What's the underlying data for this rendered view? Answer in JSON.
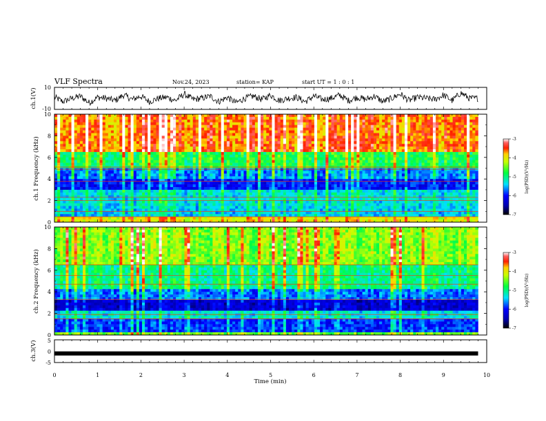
{
  "header": {
    "title": "VLF Spectra",
    "date": "Nov.24, 2023",
    "station": "station= KAP",
    "start": "start  UT =  1 : 0  : 1"
  },
  "chart_data": [
    {
      "type": "line",
      "panel": "ch1-waveform",
      "ylabel": "ch.1(V)",
      "ylim": [
        -10,
        10
      ],
      "yticks": [
        10,
        -10
      ],
      "series": [
        {
          "values_sampled_every_0.2min": [
            1,
            -3,
            0,
            2,
            -4,
            1,
            0,
            -2,
            3,
            -1,
            2,
            -3,
            0,
            1,
            -2,
            4,
            -1,
            0,
            2,
            -3,
            1,
            -4,
            0,
            2,
            -1,
            3,
            -2,
            0,
            1,
            -3,
            2,
            -1,
            0,
            3,
            -2,
            1,
            -1,
            2,
            -3,
            0,
            4,
            -2,
            1,
            0,
            -1,
            3,
            -2,
            5,
            0
          ]
        }
      ]
    },
    {
      "type": "heatmap",
      "panel": "ch1-spectrogram",
      "ylabel": "ch.1 Frequency (kHz)",
      "ylim": [
        0,
        10
      ],
      "yticks": [
        "0",
        "2",
        "4",
        "6",
        "8",
        "10"
      ],
      "colorbar": {
        "label": "log(PSD)(V²/Hz)",
        "range": [
          -7,
          -3
        ],
        "ticks": [
          "-3",
          "-4",
          "-5",
          "-6",
          "-7"
        ]
      },
      "bands": [
        {
          "from": 0,
          "to": 0.5,
          "level": -4.0
        },
        {
          "from": 0.5,
          "to": 1.5,
          "level": -5.4
        },
        {
          "from": 1.5,
          "to": 3,
          "level": -5.3
        },
        {
          "from": 3,
          "to": 4,
          "level": -6.0
        },
        {
          "from": 4,
          "to": 5,
          "level": -5.6
        },
        {
          "from": 5,
          "to": 6.5,
          "level": -4.8
        },
        {
          "from": 6.5,
          "to": 10,
          "level": -3.6
        }
      ],
      "lines_khz": [
        0.5,
        1.0,
        2.0,
        2.3,
        3.8,
        4.9,
        5.1
      ]
    },
    {
      "type": "heatmap",
      "panel": "ch2-spectrogram",
      "ylabel": "ch.2 Frequency (kHz)",
      "ylim": [
        0,
        10
      ],
      "yticks": [
        "0",
        "2",
        "4",
        "6",
        "8",
        "10"
      ],
      "colorbar": {
        "label": "log(PSD)(V²/Hz)",
        "range": [
          -7,
          -3
        ],
        "ticks": [
          "-3",
          "-4",
          "-5",
          "-6",
          "-7"
        ]
      },
      "bands": [
        {
          "from": 0,
          "to": 0.3,
          "level": -4.5
        },
        {
          "from": 0.3,
          "to": 1.6,
          "level": -5.9
        },
        {
          "from": 1.6,
          "to": 2.2,
          "level": -5.3
        },
        {
          "from": 2.2,
          "to": 3.3,
          "level": -6.3
        },
        {
          "from": 3.3,
          "to": 4.2,
          "level": -5.7
        },
        {
          "from": 4.2,
          "to": 6.5,
          "level": -5.0
        },
        {
          "from": 6.5,
          "to": 10,
          "level": -4.4
        }
      ],
      "lines_khz": [
        1.5,
        1.9,
        3.3,
        4.7,
        5.5,
        6.5
      ]
    },
    {
      "type": "line",
      "panel": "ch3-waveform",
      "ylabel": "ch.3(V)",
      "ylim": [
        -5,
        5
      ],
      "yticks": [
        "5",
        "0",
        "-5"
      ],
      "series": [
        {
          "values": [
            -1,
            -1
          ]
        }
      ]
    }
  ],
  "xaxis": {
    "label": "Time  (min)",
    "ticks": [
      "0",
      "1",
      "2",
      "3",
      "4",
      "5",
      "6",
      "7",
      "8",
      "9",
      "10"
    ],
    "xlim": [
      0,
      10
    ],
    "data_end_min": 9.8
  },
  "colors": {
    "frame": "#000000",
    "background": "#ffffff"
  }
}
